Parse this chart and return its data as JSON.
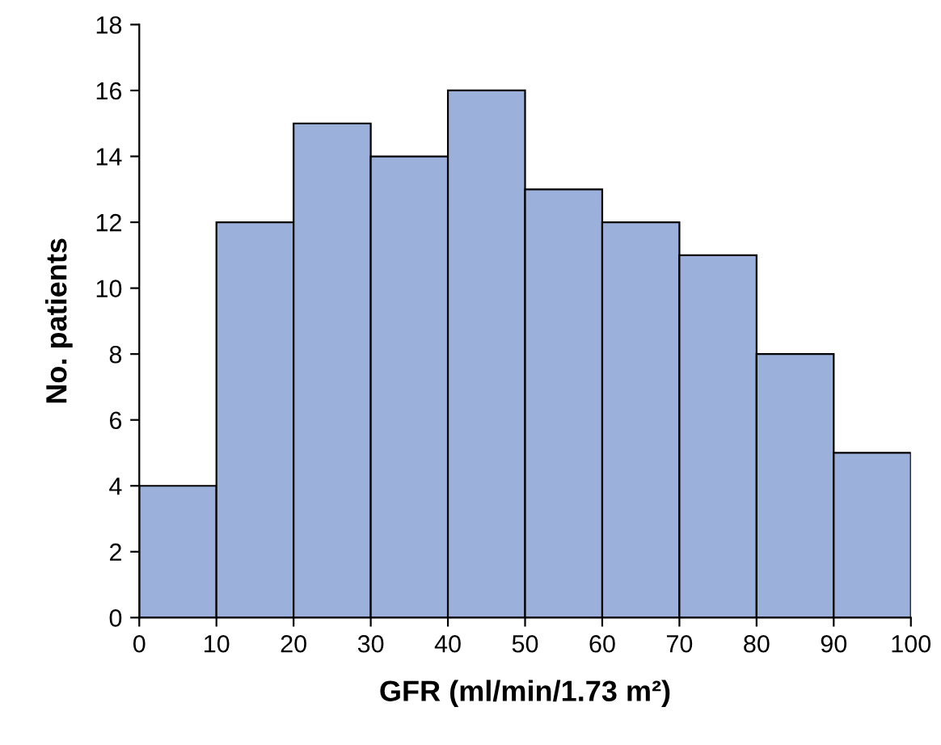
{
  "chart_data": {
    "type": "histogram",
    "xlabel": "GFR (ml/min/1.73 m²)",
    "ylabel": "No. patients",
    "bins": [
      0,
      10,
      20,
      30,
      40,
      50,
      60,
      70,
      80,
      90,
      100
    ],
    "values": [
      4,
      12,
      15,
      14,
      16,
      13,
      12,
      11,
      8,
      5
    ],
    "color": "#9bb1dc",
    "xlim": [
      0,
      100
    ],
    "xticks": [
      0,
      10,
      20,
      30,
      40,
      50,
      60,
      70,
      80,
      90,
      100
    ],
    "ylim": [
      0,
      18
    ],
    "yticks": [
      0,
      2,
      4,
      6,
      8,
      10,
      12,
      14,
      16,
      18
    ],
    "grid": false,
    "legend": false
  }
}
